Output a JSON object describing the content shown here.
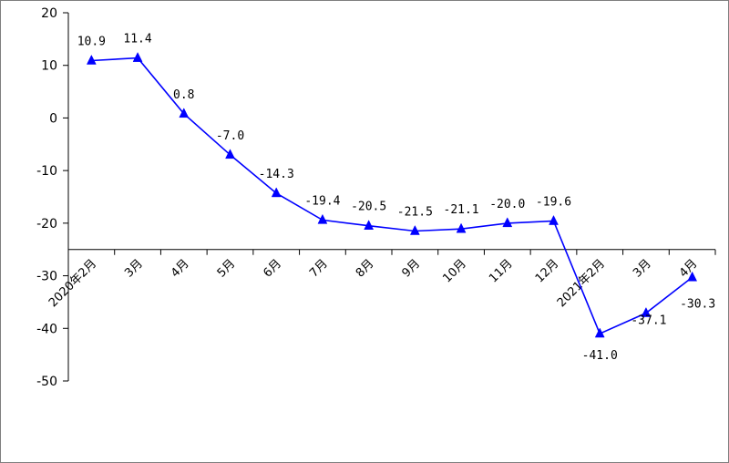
{
  "chart_data": {
    "type": "line",
    "categories": [
      "2020年2月",
      "3月",
      "4月",
      "5月",
      "6月",
      "7月",
      "8月",
      "9月",
      "10月",
      "11月",
      "12月",
      "2021年2月",
      "3月",
      "4月"
    ],
    "series": [
      {
        "values": [
          10.9,
          11.4,
          0.8,
          -7.0,
          -14.3,
          -19.4,
          -20.5,
          -21.5,
          -21.1,
          -20.0,
          -19.6,
          -41.0,
          -37.1,
          -30.3
        ]
      }
    ],
    "data_labels": [
      "10.9",
      "11.4",
      "0.8",
      "-7.0",
      "-14.3",
      "-19.4",
      "-20.5",
      "-21.5",
      "-21.1",
      "-20.0",
      "-19.6",
      "-41.0",
      "-37.1",
      "-30.3"
    ],
    "y_ticks": [
      "20",
      "10",
      "0",
      "-10",
      "-20",
      "-30",
      "-40",
      "-50"
    ],
    "ylim": [
      -50,
      20
    ],
    "x_axis_at": -25,
    "line_color": "#0000ff",
    "marker": "triangle",
    "grid": false,
    "legend": "none"
  }
}
